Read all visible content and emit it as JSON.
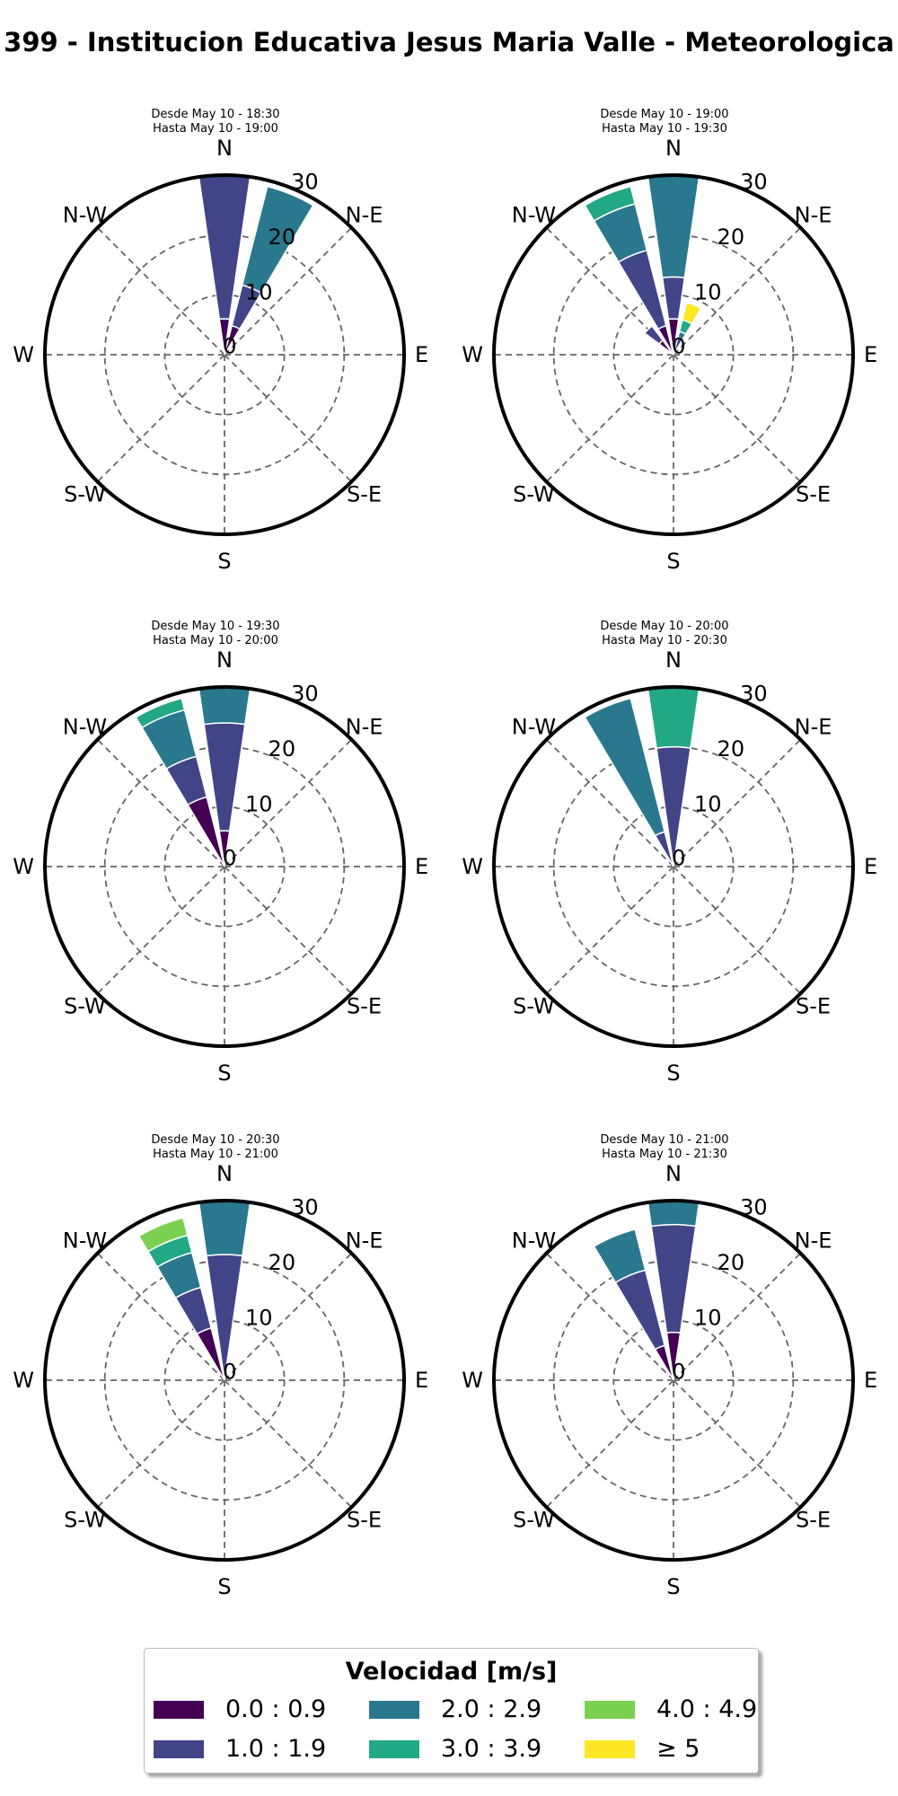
{
  "title": "399 - Institucion Educativa Jesus Maria Valle - Meteorologica",
  "legend": {
    "title": "Velocidad [m/s]",
    "bins": [
      {
        "label": "0.0 : 0.9",
        "color": "#440154"
      },
      {
        "label": "1.0 : 1.9",
        "color": "#414487"
      },
      {
        "label": "2.0 : 2.9",
        "color": "#2a788e"
      },
      {
        "label": "3.0 : 3.9",
        "color": "#22a884"
      },
      {
        "label": "4.0 : 4.9",
        "color": "#7ad151"
      },
      {
        "label": "≥ 5",
        "color": "#fde725"
      }
    ]
  },
  "chart_data": [
    {
      "type": "windrose",
      "subtitle": [
        "Desde May 10 - 18:30",
        "Hasta May 10 - 19:00"
      ],
      "directions": [
        "N",
        "N-E",
        "E",
        "S-E",
        "S",
        "S-W",
        "W",
        "N-W"
      ],
      "radial_ticks": [
        0,
        10,
        20,
        30
      ],
      "rmax": 30,
      "sectors": [
        {
          "direction_deg": 0,
          "stacks": [
            {
              "bin": 0,
              "value": 6
            },
            {
              "bin": 1,
              "value": 24
            }
          ]
        },
        {
          "direction_deg": 22.5,
          "stacks": [
            {
              "bin": 0,
              "value": 5
            },
            {
              "bin": 1,
              "value": 7
            },
            {
              "bin": 2,
              "value": 17
            }
          ]
        }
      ]
    },
    {
      "type": "windrose",
      "subtitle": [
        "Desde May 10 - 19:00",
        "Hasta May 10 - 19:30"
      ],
      "directions": [
        "N",
        "N-E",
        "E",
        "S-E",
        "S",
        "S-W",
        "W",
        "N-W"
      ],
      "radial_ticks": [
        0,
        10,
        20,
        30
      ],
      "rmax": 30,
      "sectors": [
        {
          "direction_deg": 0,
          "stacks": [
            {
              "bin": 0,
              "value": 6
            },
            {
              "bin": 1,
              "value": 7
            },
            {
              "bin": 2,
              "value": 17
            }
          ]
        },
        {
          "direction_deg": -22.5,
          "stacks": [
            {
              "bin": 0,
              "value": 5
            },
            {
              "bin": 1,
              "value": 13
            },
            {
              "bin": 2,
              "value": 8
            },
            {
              "bin": 3,
              "value": 3
            }
          ]
        },
        {
          "direction_deg": -45,
          "stacks": [
            {
              "bin": 0,
              "value": 3
            },
            {
              "bin": 1,
              "value": 3
            }
          ]
        },
        {
          "direction_deg": 22.5,
          "stacks": [
            {
              "bin": 1,
              "value": 3
            },
            {
              "bin": 2,
              "value": 1
            },
            {
              "bin": 3,
              "value": 2
            },
            {
              "bin": 5,
              "value": 3
            }
          ]
        }
      ]
    },
    {
      "type": "windrose",
      "subtitle": [
        "Desde May 10 - 19:30",
        "Hasta May 10 - 20:00"
      ],
      "directions": [
        "N",
        "N-E",
        "E",
        "S-E",
        "S",
        "S-W",
        "W",
        "N-W"
      ],
      "radial_ticks": [
        0,
        10,
        20,
        30
      ],
      "rmax": 30,
      "sectors": [
        {
          "direction_deg": 0,
          "stacks": [
            {
              "bin": 0,
              "value": 6
            },
            {
              "bin": 1,
              "value": 18
            },
            {
              "bin": 2,
              "value": 6
            }
          ]
        },
        {
          "direction_deg": -22.5,
          "stacks": [
            {
              "bin": 0,
              "value": 12
            },
            {
              "bin": 1,
              "value": 7
            },
            {
              "bin": 2,
              "value": 8
            },
            {
              "bin": 3,
              "value": 2
            }
          ]
        }
      ]
    },
    {
      "type": "windrose",
      "subtitle": [
        "Desde May 10 - 20:00",
        "Hasta May 10 - 20:30"
      ],
      "directions": [
        "N",
        "N-E",
        "E",
        "S-E",
        "S",
        "S-W",
        "W",
        "N-W"
      ],
      "radial_ticks": [
        0,
        10,
        20,
        30
      ],
      "rmax": 30,
      "sectors": [
        {
          "direction_deg": 0,
          "stacks": [
            {
              "bin": 1,
              "value": 20
            },
            {
              "bin": 3,
              "value": 10
            }
          ]
        },
        {
          "direction_deg": -22.5,
          "stacks": [
            {
              "bin": 1,
              "value": 6
            },
            {
              "bin": 2,
              "value": 23
            }
          ]
        }
      ]
    },
    {
      "type": "windrose",
      "subtitle": [
        "Desde May 10 - 20:30",
        "Hasta May 10 - 21:00"
      ],
      "directions": [
        "N",
        "N-E",
        "E",
        "S-E",
        "S",
        "S-W",
        "W",
        "N-W"
      ],
      "radial_ticks": [
        0,
        10,
        20,
        30
      ],
      "rmax": 30,
      "sectors": [
        {
          "direction_deg": 0,
          "stacks": [
            {
              "bin": 1,
              "value": 21
            },
            {
              "bin": 2,
              "value": 9
            }
          ]
        },
        {
          "direction_deg": -22.5,
          "stacks": [
            {
              "bin": 0,
              "value": 9
            },
            {
              "bin": 1,
              "value": 7
            },
            {
              "bin": 2,
              "value": 6
            },
            {
              "bin": 3,
              "value": 3
            },
            {
              "bin": 4,
              "value": 3
            }
          ]
        }
      ]
    },
    {
      "type": "windrose",
      "subtitle": [
        "Desde May 10 - 21:00",
        "Hasta May 10 - 21:30"
      ],
      "directions": [
        "N",
        "N-E",
        "E",
        "S-E",
        "S",
        "S-W",
        "W",
        "N-W"
      ],
      "radial_ticks": [
        0,
        10,
        20,
        30
      ],
      "rmax": 30,
      "sectors": [
        {
          "direction_deg": 0,
          "stacks": [
            {
              "bin": 0,
              "value": 8
            },
            {
              "bin": 1,
              "value": 18
            },
            {
              "bin": 2,
              "value": 4
            }
          ]
        },
        {
          "direction_deg": -22.5,
          "stacks": [
            {
              "bin": 0,
              "value": 6
            },
            {
              "bin": 1,
              "value": 13
            },
            {
              "bin": 2,
              "value": 7
            }
          ]
        }
      ]
    }
  ]
}
